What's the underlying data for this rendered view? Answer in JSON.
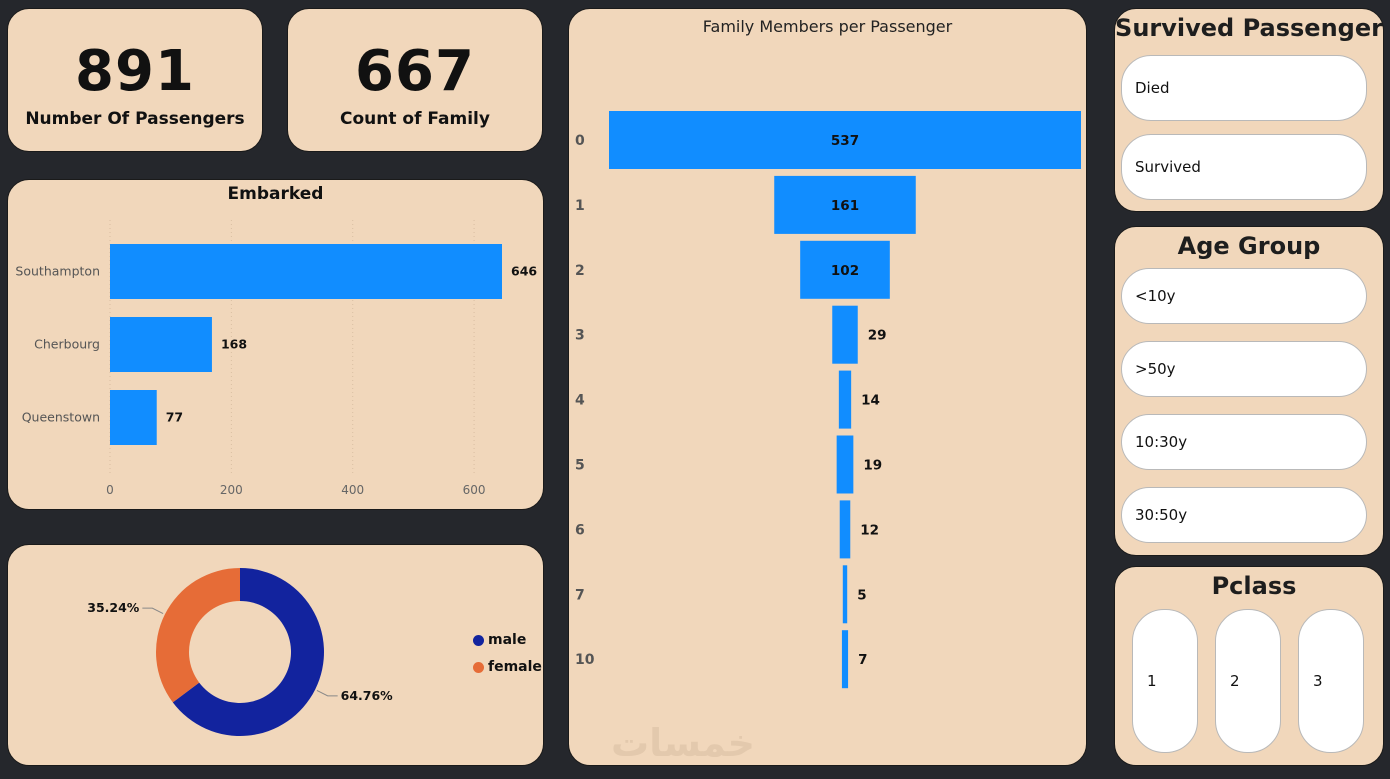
{
  "kpis": {
    "passengers": {
      "value": "891",
      "label": "Number Of Passengers"
    },
    "family": {
      "value": "667",
      "label": "Count of Family"
    }
  },
  "chart_data": [
    {
      "type": "bar",
      "orientation": "horizontal",
      "title": "Embarked",
      "categories": [
        "Southampton",
        "Cherbourg",
        "Queenstown"
      ],
      "values": [
        646,
        168,
        77
      ],
      "xlim": [
        0,
        700
      ],
      "xticks": [
        0,
        200,
        400,
        600
      ],
      "grid": true,
      "color": "#118dff"
    },
    {
      "type": "bar",
      "orientation": "funnel",
      "title": "Family Members per Passenger",
      "categories": [
        "0",
        "1",
        "2",
        "3",
        "4",
        "5",
        "6",
        "7",
        "10"
      ],
      "values": [
        537,
        161,
        102,
        29,
        14,
        19,
        12,
        5,
        7
      ],
      "color": "#118dff"
    },
    {
      "type": "pie",
      "variant": "donut",
      "labels": [
        "male",
        "female"
      ],
      "values": [
        64.76,
        35.24
      ],
      "value_labels": [
        "64.76%",
        "35.24%"
      ],
      "colors": [
        "#12239e",
        "#e66c37"
      ],
      "legend": "right"
    }
  ],
  "slicers": {
    "survived": {
      "title": "Survived Passenger",
      "items": [
        "Died",
        "Survived"
      ]
    },
    "age_group": {
      "title": "Age Group",
      "items": [
        "<10y",
        ">50y",
        "10:30y",
        "30:50y"
      ]
    },
    "pclass": {
      "title": "Pclass",
      "items": [
        "1",
        "2",
        "3"
      ]
    }
  },
  "watermark": "خمسات"
}
